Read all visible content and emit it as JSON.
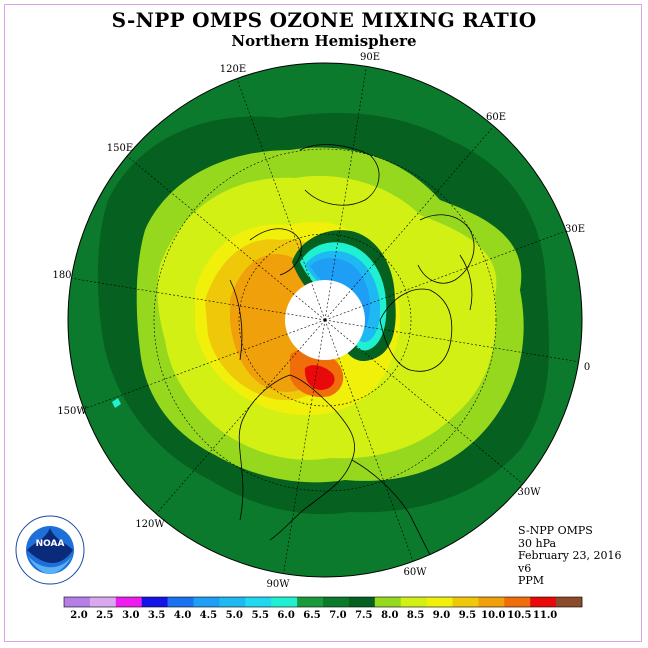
{
  "title": "S-NPP OMPS OZONE MIXING RATIO",
  "subtitle": "Northern Hemisphere",
  "longitude_labels": [
    "90E",
    "60E",
    "30E",
    "0",
    "30W",
    "60W",
    "90W",
    "120W",
    "150W",
    "180",
    "150E",
    "120E"
  ],
  "info": {
    "instrument": "S-NPP OMPS",
    "level": "30 hPa",
    "date": "February 23, 2016",
    "version": "v6",
    "units": "PPM"
  },
  "colorbar": {
    "ticks": [
      "2.0",
      "2.5",
      "3.0",
      "3.5",
      "4.0",
      "4.5",
      "5.0",
      "5.5",
      "6.0",
      "6.5",
      "7.0",
      "7.5",
      "8.0",
      "8.5",
      "9.0",
      "9.5",
      "10.0",
      "10.5",
      "11.0"
    ],
    "colors": [
      "#b57ee8",
      "#d8a8f0",
      "#ee1cee",
      "#1414e6",
      "#1a72f0",
      "#1e9ef5",
      "#1eb8f2",
      "#20d8f0",
      "#1ff0d2",
      "#1a9a3a",
      "#0c7a2c",
      "#06601f",
      "#96d81e",
      "#d2f014",
      "#f0f00a",
      "#f0c80a",
      "#f0a00a",
      "#f06e0a",
      "#e80a0a",
      "#8b4a2a"
    ]
  },
  "logo": {
    "name": "noaa-logo",
    "text": "NOAA"
  }
}
